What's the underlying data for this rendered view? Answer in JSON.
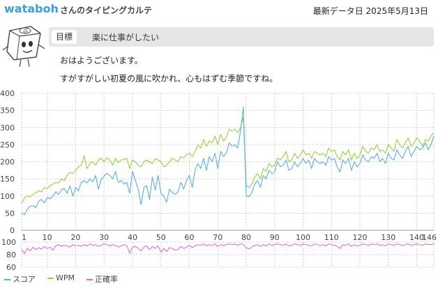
{
  "header": {
    "user_name": "wataboh",
    "page_title": "さんのタイピングカルテ",
    "date_label": "最新データ日 2025年5月13日"
  },
  "goal": {
    "tag": "目標",
    "text": "楽に仕事がしたい"
  },
  "messages": [
    "おはようございます。",
    "すがすがしい初夏の風に吹かれ、心もはずむ季節ですね。"
  ],
  "legend": [
    {
      "name": "スコア",
      "color": "#5aaee0"
    },
    {
      "name": "WPM",
      "color": "#9ccc3e"
    },
    {
      "name": "正確率",
      "color": "#d86ed8"
    }
  ],
  "chart_data": [
    {
      "type": "line",
      "x": [
        1,
        2,
        3,
        4,
        5,
        6,
        7,
        8,
        9,
        10,
        11,
        12,
        13,
        14,
        15,
        16,
        17,
        18,
        19,
        20,
        21,
        22,
        23,
        24,
        25,
        26,
        27,
        28,
        29,
        30,
        31,
        32,
        33,
        34,
        35,
        36,
        37,
        38,
        39,
        40,
        41,
        42,
        43,
        44,
        45,
        46,
        47,
        48,
        49,
        50,
        51,
        52,
        53,
        54,
        55,
        56,
        57,
        58,
        59,
        60,
        61,
        62,
        63,
        64,
        65,
        66,
        67,
        68,
        69,
        70,
        71,
        72,
        73,
        74,
        75,
        76,
        77,
        78,
        79,
        80,
        81,
        82,
        83,
        84,
        85,
        86,
        87,
        88,
        89,
        90,
        91,
        92,
        93,
        94,
        95,
        96,
        97,
        98,
        99,
        100,
        101,
        102,
        103,
        104,
        105,
        106,
        107,
        108,
        109,
        110,
        111,
        112,
        113,
        114,
        115,
        116,
        117,
        118,
        119,
        120,
        121,
        122,
        123,
        124,
        125,
        126,
        127,
        128,
        129,
        130,
        131,
        132,
        133,
        134,
        135,
        136,
        137,
        138,
        139,
        140,
        141,
        142,
        143,
        144,
        145,
        146
      ],
      "series": [
        {
          "name": "スコア",
          "color": "#5aaee0",
          "values": [
            50,
            45,
            62,
            70,
            72,
            66,
            85,
            90,
            80,
            95,
            92,
            100,
            112,
            105,
            118,
            122,
            108,
            130,
            100,
            125,
            115,
            140,
            145,
            138,
            150,
            142,
            160,
            120,
            148,
            158,
            166,
            160,
            150,
            172,
            140,
            145,
            135,
            140,
            108,
            172,
            146,
            120,
            75,
            125,
            130,
            90,
            155,
            118,
            160,
            108,
            100,
            82,
            120,
            110,
            105,
            112,
            140,
            120,
            145,
            160,
            125,
            175,
            195,
            180,
            210,
            175,
            215,
            200,
            225,
            180,
            230,
            215,
            225,
            255,
            245,
            250,
            240,
            290,
            360,
            100,
            98,
            110,
            135,
            145,
            125,
            160,
            150,
            175,
            165,
            170,
            200,
            185,
            190,
            205,
            175,
            180,
            200,
            185,
            195,
            210,
            195,
            205,
            180,
            210,
            200,
            195,
            200,
            190,
            215,
            205,
            210,
            185,
            170,
            205,
            195,
            210,
            175,
            200,
            185,
            195,
            220,
            205,
            200,
            215,
            210,
            225,
            200,
            210,
            195,
            225,
            210,
            205,
            235,
            220,
            210,
            230,
            245,
            215,
            230,
            245,
            235,
            240,
            255,
            235,
            250,
            275
          ]
        },
        {
          "name": "WPM",
          "color": "#9ccc3e",
          "values": [
            78,
            95,
            100,
            98,
            105,
            110,
            115,
            112,
            125,
            122,
            130,
            135,
            140,
            138,
            150,
            145,
            160,
            170,
            165,
            175,
            185,
            190,
            218,
            180,
            195,
            200,
            190,
            205,
            210,
            200,
            212,
            205,
            190,
            210,
            198,
            205,
            208,
            210,
            180,
            205,
            200,
            190,
            185,
            200,
            205,
            200,
            195,
            210,
            205,
            200,
            185,
            190,
            200,
            210,
            205,
            200,
            215,
            212,
            220,
            225,
            215,
            230,
            250,
            240,
            265,
            245,
            260,
            255,
            275,
            250,
            280,
            260,
            270,
            295,
            290,
            295,
            285,
            300,
            330,
            130,
            125,
            135,
            155,
            165,
            150,
            180,
            172,
            195,
            185,
            190,
            210,
            205,
            215,
            230,
            200,
            205,
            225,
            210,
            220,
            235,
            220,
            225,
            210,
            230,
            225,
            220,
            225,
            215,
            240,
            230,
            235,
            215,
            205,
            230,
            220,
            235,
            205,
            225,
            210,
            220,
            245,
            230,
            225,
            240,
            235,
            250,
            230,
            235,
            225,
            250,
            240,
            230,
            265,
            250,
            240,
            255,
            270,
            245,
            255,
            270,
            260,
            245,
            265,
            260,
            275,
            285
          ]
        },
        {
          "name": "正確率",
          "color": "#d86ed8",
          "values": [
            88,
            82,
            90,
            86,
            92,
            88,
            91,
            89,
            93,
            90,
            92,
            87,
            94,
            96,
            93,
            95,
            94,
            92,
            96,
            94,
            95,
            93,
            96,
            94,
            97,
            95,
            96,
            93,
            95,
            97,
            96,
            94,
            96,
            95,
            92,
            94,
            96,
            95,
            82,
            92,
            93,
            90,
            86,
            92,
            94,
            88,
            93,
            90,
            94,
            84,
            90,
            85,
            91,
            90,
            87,
            88,
            93,
            90,
            92,
            95,
            91,
            94,
            96,
            95,
            97,
            94,
            96,
            95,
            97,
            93,
            96,
            95,
            96,
            97,
            96,
            97,
            95,
            97,
            96,
            91,
            89,
            92,
            95,
            96,
            93,
            96,
            94,
            97,
            95,
            96,
            97,
            96,
            95,
            97,
            94,
            95,
            97,
            96,
            95,
            97,
            96,
            95,
            94,
            97,
            96,
            95,
            96,
            94,
            97,
            96,
            95,
            93,
            90,
            96,
            95,
            97,
            93,
            96,
            94,
            95,
            97,
            96,
            95,
            97,
            96,
            97,
            95,
            96,
            94,
            97,
            96,
            95,
            97,
            96,
            95,
            96,
            97,
            95,
            96,
            97,
            96,
            95,
            97,
            96,
            96,
            97
          ]
        }
      ],
      "ylim": [
        0,
        400
      ],
      "yticks": [
        0,
        50,
        100,
        150,
        200,
        250,
        300,
        350,
        400
      ],
      "xticks": [
        1,
        10,
        20,
        30,
        40,
        50,
        60,
        70,
        80,
        90,
        100,
        110,
        120,
        130,
        140,
        146
      ],
      "grid": true
    },
    {
      "type": "line",
      "x_ref": "same as first chart",
      "series_ref": "正確率",
      "ylim": [
        60,
        100
      ],
      "yticks": [
        60,
        80,
        100
      ],
      "grid": true
    }
  ]
}
